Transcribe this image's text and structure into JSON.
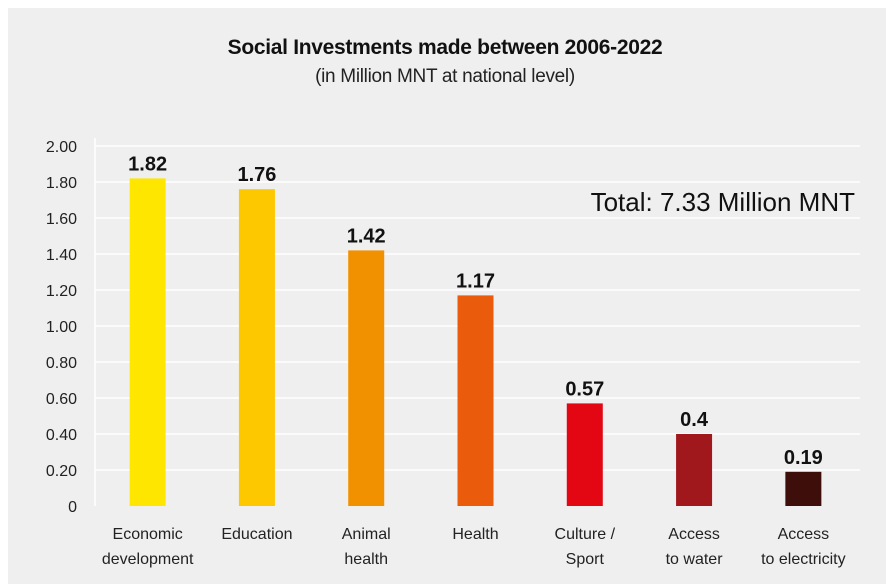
{
  "chart_data": {
    "type": "bar",
    "title": "Social Investments made between 2006-2022",
    "subtitle": "(in Million MNT at national level)",
    "annotation": "Total: 7.33 Million MNT",
    "categories": [
      [
        "Economic",
        "development"
      ],
      [
        "Education"
      ],
      [
        "Animal",
        "health"
      ],
      [
        "Health"
      ],
      [
        "Culture /",
        "Sport"
      ],
      [
        "Access",
        "to water"
      ],
      [
        "Access",
        "to electricity"
      ]
    ],
    "values": [
      1.82,
      1.76,
      1.42,
      1.17,
      0.57,
      0.4,
      0.19
    ],
    "value_labels": [
      "1.82",
      "1.76",
      "1.42",
      "1.17",
      "0.57",
      "0.4",
      "0.19"
    ],
    "colors": [
      "#ffe600",
      "#fdc800",
      "#f29100",
      "#ea5b0c",
      "#e30613",
      "#a0171c",
      "#3d0e0a"
    ],
    "y_ticks": [
      "0",
      "0.20",
      "0.40",
      "0.60",
      "0.80",
      "1.00",
      "1.20",
      "1.40",
      "1.60",
      "1.80",
      "2.00"
    ],
    "ylim": [
      0,
      2.0
    ],
    "grid": true
  }
}
